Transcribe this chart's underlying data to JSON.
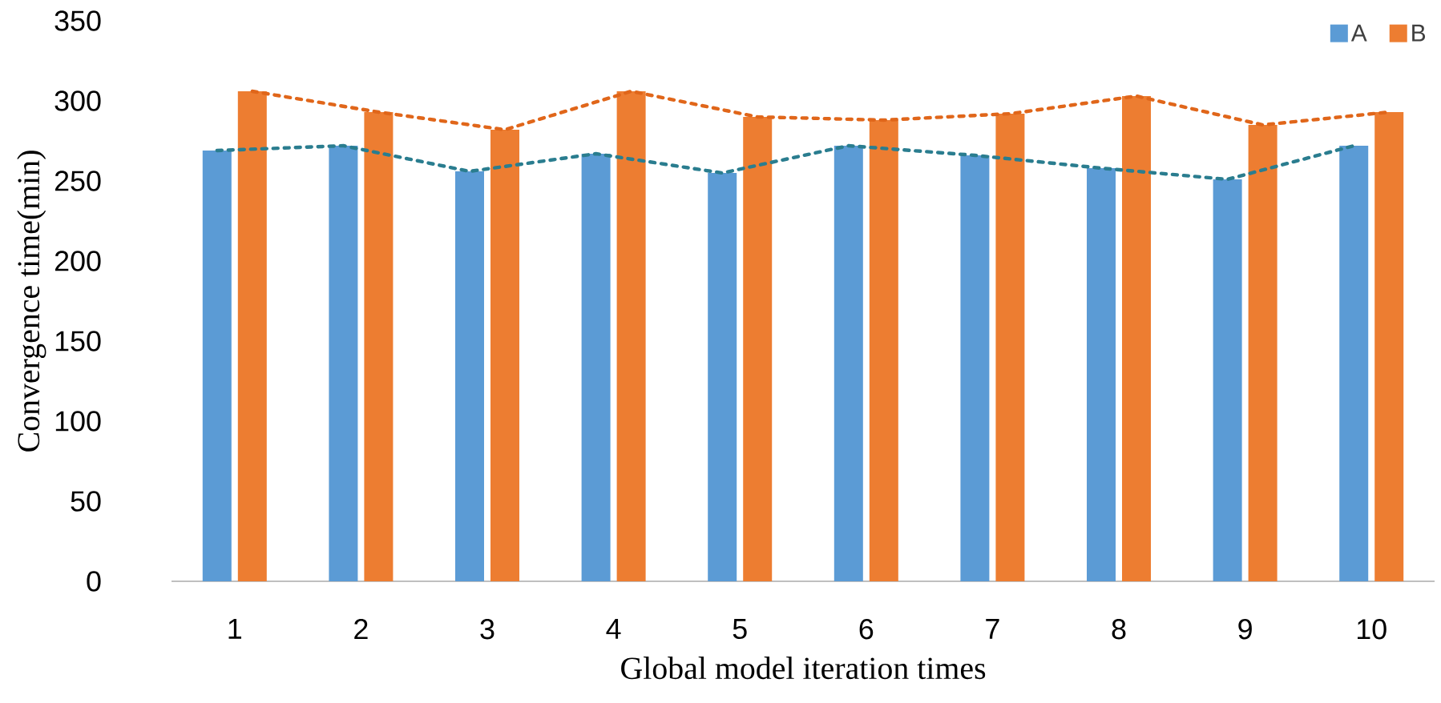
{
  "chart_data": {
    "type": "bar",
    "xlabel": "Global model iteration times",
    "ylabel": "Convergence time(min)",
    "categories": [
      "1",
      "2",
      "3",
      "4",
      "5",
      "6",
      "7",
      "8",
      "9",
      "10"
    ],
    "ylim": [
      0,
      350
    ],
    "yticks": [
      0,
      50,
      100,
      150,
      200,
      250,
      300,
      350
    ],
    "legend": "top right",
    "series": [
      {
        "name": "A",
        "color": "#5b9bd5",
        "values": [
          269,
          272,
          256,
          267,
          255,
          272,
          266,
          258,
          251,
          272
        ]
      },
      {
        "name": "B",
        "color": "#ed7d31",
        "values": [
          306,
          293,
          282,
          306,
          290,
          288,
          292,
          303,
          285,
          293
        ]
      },
      {
        "type": "line",
        "color": "#2a7d8f",
        "line_style": "dashed",
        "marker": "none",
        "values": [
          269,
          272,
          256,
          267,
          255,
          272,
          266,
          258,
          251,
          272
        ]
      },
      {
        "type": "line",
        "color": "#e0661a",
        "line_style": "dashed",
        "marker": "none",
        "values": [
          306,
          293,
          282,
          306,
          290,
          288,
          292,
          303,
          285,
          293
        ]
      }
    ]
  }
}
